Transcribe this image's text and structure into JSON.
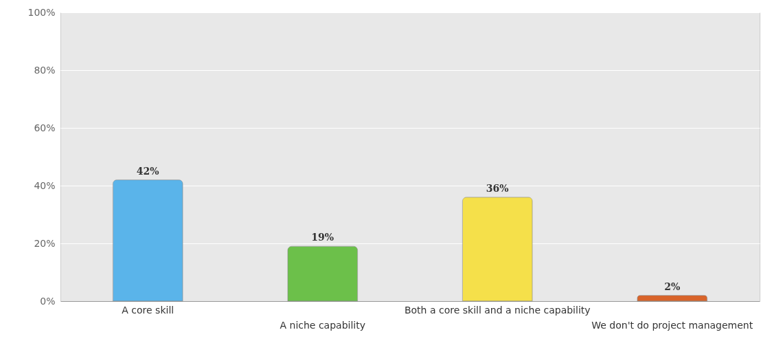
{
  "chart_data": {
    "type": "bar",
    "categories": [
      "A core skill",
      "A niche capability",
      "Both a core skill and a niche capability",
      "We don't do project management"
    ],
    "values": [
      42,
      19,
      36,
      2
    ],
    "colors": [
      "#5ab4ea",
      "#6cc04a",
      "#f5e04a",
      "#d9642a"
    ],
    "ylim": [
      0,
      100
    ],
    "yticks": [
      {
        "value": 0,
        "label": "0%"
      },
      {
        "value": 20,
        "label": "20%"
      },
      {
        "value": 40,
        "label": "40%"
      },
      {
        "value": 60,
        "label": "60%"
      },
      {
        "value": 80,
        "label": "80%"
      },
      {
        "value": 100,
        "label": "100%"
      }
    ],
    "value_labels": [
      "42%",
      "19%",
      "36%",
      "2%"
    ],
    "grid": "y"
  }
}
